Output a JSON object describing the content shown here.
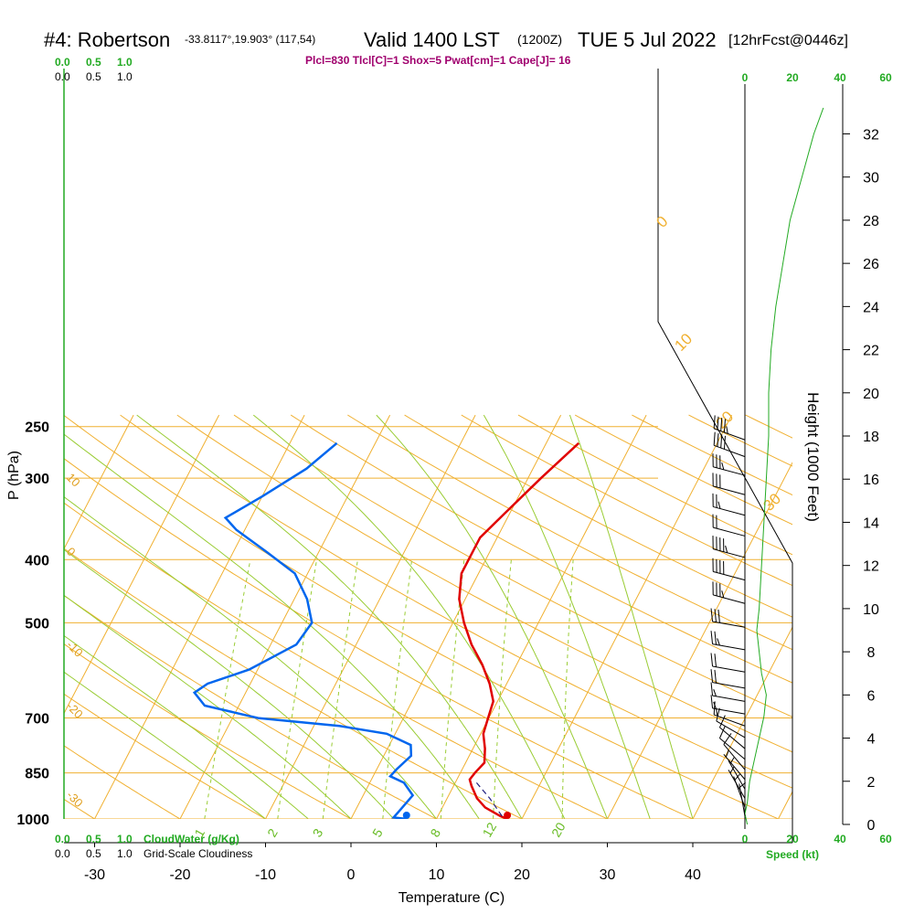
{
  "header": {
    "station": "#4: Robertson",
    "coords": "-33.8117°,19.903° (117,54)",
    "valid": "Valid 1400 LST",
    "zulu": "(1200Z)",
    "date": "TUE 5 Jul 2022",
    "forecast": "[12hrFcst@0446z]",
    "indices": "Plcl=830 Tlcl[C]=1 Shox=5 Pwat[cm]=1 Cape[J]= 16"
  },
  "left_scales": {
    "cloud_water_ticks": [
      "0.0",
      "0.5",
      "1.0"
    ],
    "cloudiness_ticks": [
      "0.0",
      "0.5",
      "1.0"
    ],
    "cloud_water_label": "CloudWater (g/Kg)",
    "cloudiness_label": "Grid-Scale Cloudiness"
  },
  "speed_scale": {
    "ticks": [
      "0",
      "20",
      "40",
      "60"
    ],
    "label": "Speed (kt)"
  },
  "colors": {
    "isobar": "#f0b030",
    "isotherm": "#f0b030",
    "dry_adiabat": "#f0b030",
    "moist_adiabat": "#99cc33",
    "mixing_ratio": "#99cc33",
    "temperature": "#e00000",
    "dewpoint": "#0066ee",
    "speed": "#22aa22",
    "parcel": "#202080"
  },
  "chart_data": {
    "type": "skew-t",
    "xlabel": "Temperature (C)",
    "ylabel": "P (hPa)",
    "ylabel_right": "Height (1000 Feet)",
    "x_ticks": [
      -30,
      -20,
      -10,
      0,
      10,
      20,
      30,
      40
    ],
    "pressure_levels": [
      250,
      300,
      400,
      500,
      700,
      850,
      1000
    ],
    "height_ticks_kft": [
      0,
      2,
      4,
      6,
      8,
      10,
      12,
      14,
      16,
      18,
      20,
      22,
      24,
      26,
      28,
      30,
      32
    ],
    "isotherm_labels": [
      {
        "text": "10",
        "pressure": 300
      },
      {
        "text": "0",
        "pressure": 400
      },
      {
        "text": "-10",
        "pressure": 500
      },
      {
        "text": "-20",
        "pressure": 700
      },
      {
        "text": "-30",
        "pressure": 850
      }
    ],
    "isotherm_labels_right": [
      "0",
      "10",
      "20",
      "30"
    ],
    "mixing_ratio_labels": [
      "1",
      "2",
      "3",
      "5",
      "8",
      "12",
      "20"
    ],
    "temperature": [
      {
        "p": 1000,
        "t": 18.3
      },
      {
        "p": 990,
        "t": 17.3
      },
      {
        "p": 960,
        "t": 15.0
      },
      {
        "p": 930,
        "t": 13.5
      },
      {
        "p": 890,
        "t": 12.1
      },
      {
        "p": 870,
        "t": 11.5
      },
      {
        "p": 850,
        "t": 11.7
      },
      {
        "p": 820,
        "t": 12.2
      },
      {
        "p": 780,
        "t": 11.4
      },
      {
        "p": 740,
        "t": 10.3
      },
      {
        "p": 700,
        "t": 9.9
      },
      {
        "p": 660,
        "t": 9.5
      },
      {
        "p": 620,
        "t": 8.0
      },
      {
        "p": 580,
        "t": 6.0
      },
      {
        "p": 540,
        "t": 3.5
      },
      {
        "p": 500,
        "t": 1.3
      },
      {
        "p": 460,
        "t": -0.7
      },
      {
        "p": 420,
        "t": -2.0
      },
      {
        "p": 400,
        "t": -2.0
      },
      {
        "p": 370,
        "t": -2.0
      },
      {
        "p": 340,
        "t": -0.6
      },
      {
        "p": 300,
        "t": 1.5
      },
      {
        "p": 265,
        "t": 3.8
      }
    ],
    "dewpoint": [
      {
        "p": 1000,
        "t": 6.5
      },
      {
        "p": 995,
        "t": 4.9
      },
      {
        "p": 970,
        "t": 5.2
      },
      {
        "p": 920,
        "t": 5.8
      },
      {
        "p": 880,
        "t": 4.0
      },
      {
        "p": 860,
        "t": 2.0
      },
      {
        "p": 840,
        "t": 2.3
      },
      {
        "p": 800,
        "t": 3.2
      },
      {
        "p": 770,
        "t": 2.5
      },
      {
        "p": 740,
        "t": -1.0
      },
      {
        "p": 720,
        "t": -7.0
      },
      {
        "p": 700,
        "t": -17.0
      },
      {
        "p": 670,
        "t": -24.0
      },
      {
        "p": 640,
        "t": -26.0
      },
      {
        "p": 620,
        "t": -25.0
      },
      {
        "p": 590,
        "t": -21.0
      },
      {
        "p": 540,
        "t": -17.0
      },
      {
        "p": 500,
        "t": -16.5
      },
      {
        "p": 460,
        "t": -18.5
      },
      {
        "p": 420,
        "t": -21.5
      },
      {
        "p": 390,
        "t": -26.0
      },
      {
        "p": 360,
        "t": -31.0
      },
      {
        "p": 345,
        "t": -33.0
      },
      {
        "p": 320,
        "t": -30.0
      },
      {
        "p": 290,
        "t": -26.5
      },
      {
        "p": 265,
        "t": -24.5
      }
    ],
    "parcel": [
      {
        "p": 990,
        "t": 17.5
      },
      {
        "p": 930,
        "t": 15.0
      },
      {
        "p": 880,
        "t": 12.5
      }
    ],
    "surface_dewpoint": {
      "p": 1000,
      "t": 6.5
    },
    "surface_temperature": {
      "p": 1000,
      "t": 18.3
    },
    "wind_speed_profile_kt": [
      {
        "h": 0.0,
        "s": 1
      },
      {
        "h": 0.5,
        "s": 0
      },
      {
        "h": 1.0,
        "s": 1
      },
      {
        "h": 2.0,
        "s": 2
      },
      {
        "h": 3.0,
        "s": 4
      },
      {
        "h": 4.0,
        "s": 6
      },
      {
        "h": 5.0,
        "s": 8
      },
      {
        "h": 6.0,
        "s": 9
      },
      {
        "h": 7.0,
        "s": 7
      },
      {
        "h": 8.0,
        "s": 6
      },
      {
        "h": 9.0,
        "s": 5
      },
      {
        "h": 10.0,
        "s": 6
      },
      {
        "h": 12.0,
        "s": 7
      },
      {
        "h": 14.0,
        "s": 8
      },
      {
        "h": 16.0,
        "s": 9
      },
      {
        "h": 18.0,
        "s": 10
      },
      {
        "h": 20.0,
        "s": 10
      },
      {
        "h": 22.0,
        "s": 11
      },
      {
        "h": 24.0,
        "s": 13
      },
      {
        "h": 26.0,
        "s": 16
      },
      {
        "h": 28.0,
        "s": 19
      },
      {
        "h": 30.0,
        "s": 24
      },
      {
        "h": 32.0,
        "s": 29
      },
      {
        "h": 33.2,
        "s": 33
      }
    ],
    "wind_barbs": [
      {
        "p": 262,
        "dir": 290,
        "kt": 75
      },
      {
        "p": 278,
        "dir": 290,
        "kt": 70
      },
      {
        "p": 297,
        "dir": 285,
        "kt": 65
      },
      {
        "p": 318,
        "dir": 285,
        "kt": 60
      },
      {
        "p": 342,
        "dir": 285,
        "kt": 55
      },
      {
        "p": 368,
        "dir": 285,
        "kt": 50
      },
      {
        "p": 397,
        "dir": 285,
        "kt": 45
      },
      {
        "p": 430,
        "dir": 285,
        "kt": 40
      },
      {
        "p": 467,
        "dir": 285,
        "kt": 35
      },
      {
        "p": 508,
        "dir": 280,
        "kt": 30
      },
      {
        "p": 550,
        "dir": 280,
        "kt": 25
      },
      {
        "p": 595,
        "dir": 280,
        "kt": 20
      },
      {
        "p": 630,
        "dir": 280,
        "kt": 20
      },
      {
        "p": 660,
        "dir": 280,
        "kt": 15
      },
      {
        "p": 690,
        "dir": 280,
        "kt": 15
      },
      {
        "p": 720,
        "dir": 290,
        "kt": 15
      },
      {
        "p": 750,
        "dir": 300,
        "kt": 10
      },
      {
        "p": 780,
        "dir": 310,
        "kt": 10
      },
      {
        "p": 810,
        "dir": 310,
        "kt": 10
      },
      {
        "p": 840,
        "dir": 320,
        "kt": 10
      },
      {
        "p": 870,
        "dir": 320,
        "kt": 5
      },
      {
        "p": 900,
        "dir": 330,
        "kt": 5
      },
      {
        "p": 930,
        "dir": 330,
        "kt": 5
      },
      {
        "p": 960,
        "dir": 340,
        "kt": 5
      },
      {
        "p": 990,
        "dir": 350,
        "kt": 5
      }
    ]
  }
}
